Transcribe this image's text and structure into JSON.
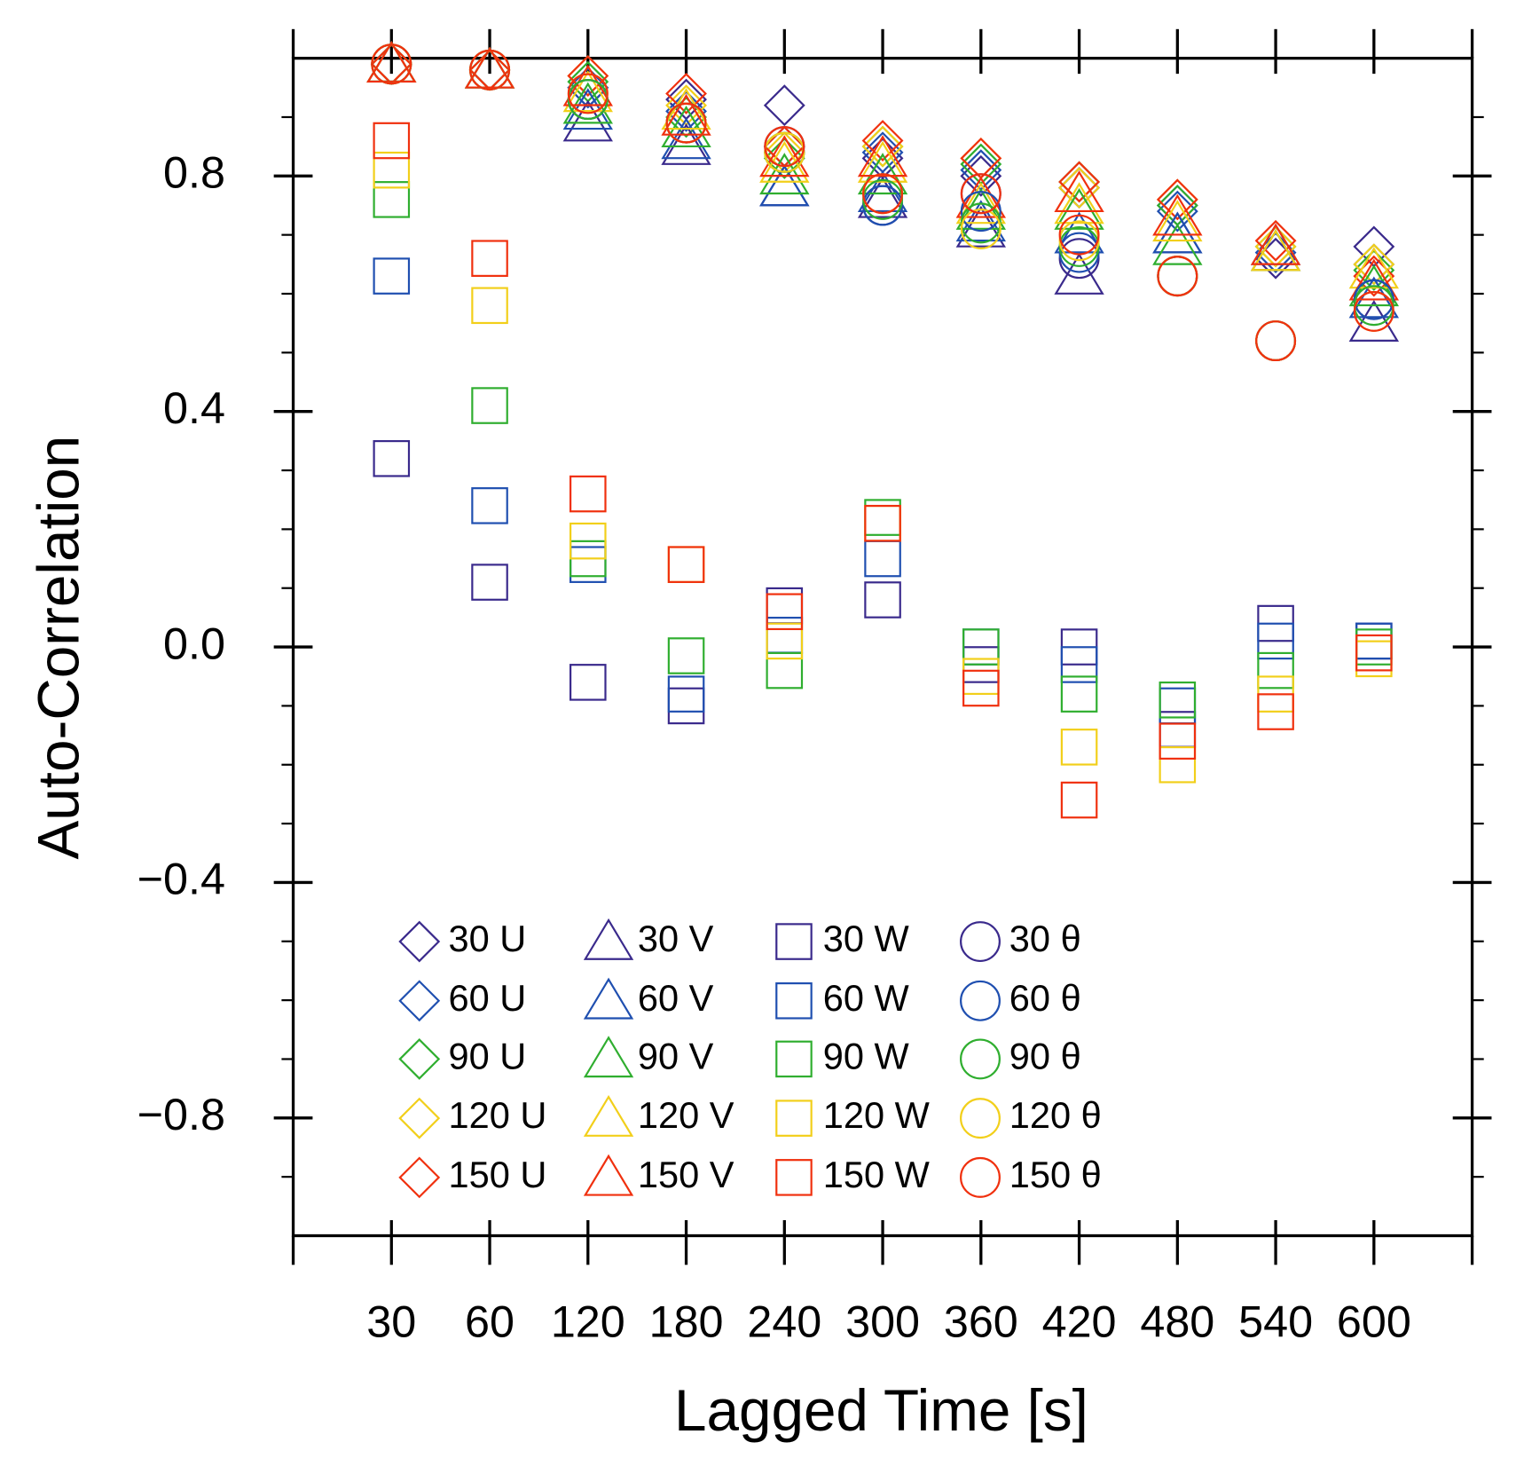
{
  "chart_data": {
    "type": "scatter",
    "xlabel": "Lagged Time [s]",
    "ylabel": "Auto-Correlation",
    "categories": [
      "30",
      "60",
      "120",
      "180",
      "240",
      "300",
      "360",
      "420",
      "480",
      "540",
      "600"
    ],
    "ylim": [
      -1.0,
      1.0
    ],
    "yticks": [
      {
        "value": -0.8,
        "label": "−0.8"
      },
      {
        "value": -0.4,
        "label": "−0.4"
      },
      {
        "value": 0.0,
        "label": "0.0"
      },
      0.4,
      0.8
    ],
    "yminorticks": [
      -0.9,
      -0.7,
      -0.6,
      -0.5,
      -0.3,
      -0.2,
      -0.1,
      0.1,
      0.2,
      0.3,
      0.5,
      0.6,
      0.7,
      0.9
    ],
    "legend": "lower left",
    "series": [
      {
        "name": "30 U",
        "marker": "diamond",
        "color": "#3a2a8c",
        "values": [
          0.99,
          0.98,
          0.95,
          0.93,
          0.92,
          0.83,
          0.8,
          0.78,
          0.75,
          0.66,
          0.68
        ]
      },
      {
        "name": "60 U",
        "marker": "diamond",
        "color": "#1f4fb0",
        "values": [
          0.99,
          0.98,
          0.95,
          0.91,
          0.85,
          0.84,
          0.81,
          0.78,
          0.74,
          0.67,
          0.65
        ]
      },
      {
        "name": "90 U",
        "marker": "diamond",
        "color": "#2fae2f",
        "values": [
          0.99,
          0.98,
          0.96,
          0.9,
          0.83,
          0.85,
          0.82,
          0.79,
          0.75,
          0.68,
          0.64
        ]
      },
      {
        "name": "120 U",
        "marker": "diamond",
        "color": "#f2cf1a",
        "values": [
          0.99,
          0.98,
          0.97,
          0.92,
          0.84,
          0.85,
          0.83,
          0.78,
          0.76,
          0.68,
          0.65
        ]
      },
      {
        "name": "150 U",
        "marker": "diamond",
        "color": "#f0300e",
        "values": [
          0.99,
          0.98,
          0.97,
          0.94,
          0.85,
          0.86,
          0.83,
          0.79,
          0.76,
          0.69,
          0.63
        ]
      },
      {
        "name": "30 V",
        "marker": "triangle",
        "color": "#3a2a8c",
        "values": [
          0.99,
          0.98,
          0.89,
          0.85,
          0.78,
          0.76,
          0.71,
          0.63,
          0.7,
          0.67,
          0.55
        ]
      },
      {
        "name": "60 V",
        "marker": "triangle",
        "color": "#1f4fb0",
        "values": [
          0.99,
          0.98,
          0.91,
          0.86,
          0.78,
          0.77,
          0.72,
          0.7,
          0.7,
          0.68,
          0.59
        ]
      },
      {
        "name": "90 V",
        "marker": "triangle",
        "color": "#2fae2f",
        "values": [
          0.99,
          0.98,
          0.92,
          0.88,
          0.8,
          0.8,
          0.74,
          0.74,
          0.68,
          0.67,
          0.61
        ]
      },
      {
        "name": "120 V",
        "marker": "triangle",
        "color": "#f2cf1a",
        "values": [
          0.99,
          0.98,
          0.94,
          0.91,
          0.82,
          0.82,
          0.75,
          0.75,
          0.72,
          0.67,
          0.64
        ]
      },
      {
        "name": "150 V",
        "marker": "triangle",
        "color": "#f0300e",
        "values": [
          0.99,
          0.98,
          0.95,
          0.9,
          0.83,
          0.83,
          0.76,
          0.77,
          0.73,
          0.68,
          0.62
        ]
      },
      {
        "name": "30 W",
        "marker": "square",
        "color": "#3a2a8c",
        "values": [
          0.32,
          0.11,
          -0.06,
          -0.1,
          0.07,
          0.08,
          -0.03,
          0.0,
          -0.14,
          0.04,
          0.01
        ]
      },
      {
        "name": "60 W",
        "marker": "square",
        "color": "#1f4fb0",
        "values": [
          0.63,
          0.24,
          0.14,
          -0.08,
          0.02,
          0.15,
          0.0,
          -0.03,
          -0.1,
          0.01,
          0.01
        ]
      },
      {
        "name": "90 W",
        "marker": "square",
        "color": "#2fae2f",
        "values": [
          0.76,
          0.41,
          0.15,
          -0.015,
          -0.04,
          0.22,
          0.0,
          -0.08,
          -0.09,
          -0.04,
          0.0
        ]
      },
      {
        "name": "120 W",
        "marker": "square",
        "color": "#f2cf1a",
        "values": [
          0.81,
          0.58,
          0.18,
          0.14,
          0.01,
          0.21,
          -0.05,
          -0.17,
          -0.2,
          -0.08,
          -0.02
        ]
      },
      {
        "name": "150 W",
        "marker": "square",
        "color": "#f0300e",
        "values": [
          0.86,
          0.66,
          0.26,
          0.14,
          0.06,
          0.21,
          -0.07,
          -0.26,
          -0.16,
          -0.11,
          -0.01
        ]
      },
      {
        "name": "30 θ",
        "marker": "circle",
        "color": "#3a2a8c",
        "values": [
          0.99,
          0.98,
          0.93,
          0.89,
          0.84,
          0.75,
          0.77,
          0.66,
          0.63,
          0.52,
          0.59
        ]
      },
      {
        "name": "60 θ",
        "marker": "circle",
        "color": "#1f4fb0",
        "values": [
          0.99,
          0.98,
          0.93,
          0.89,
          0.85,
          0.75,
          0.74,
          0.67,
          0.63,
          0.52,
          0.59
        ]
      },
      {
        "name": "90 θ",
        "marker": "circle",
        "color": "#2fae2f",
        "values": [
          0.99,
          0.98,
          0.93,
          0.89,
          0.84,
          0.76,
          0.72,
          0.68,
          0.63,
          0.52,
          0.58
        ]
      },
      {
        "name": "120 θ",
        "marker": "circle",
        "color": "#f2cf1a",
        "values": [
          0.99,
          0.98,
          0.94,
          0.89,
          0.84,
          0.77,
          0.71,
          0.69,
          0.63,
          0.52,
          0.57
        ]
      },
      {
        "name": "150 θ",
        "marker": "circle",
        "color": "#f0300e",
        "values": [
          0.99,
          0.98,
          0.94,
          0.89,
          0.85,
          0.77,
          0.77,
          0.7,
          0.63,
          0.52,
          0.57
        ]
      }
    ]
  }
}
